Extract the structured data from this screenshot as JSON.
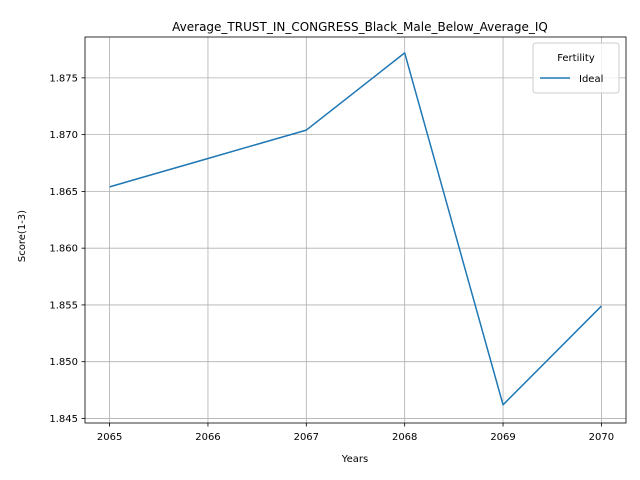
{
  "chart_data": {
    "type": "line",
    "title": "Average_TRUST_IN_CONGRESS_Black_Male_Below_Average_IQ",
    "xlabel": "Years",
    "ylabel": "Score(1-3)",
    "x": [
      2065,
      2066,
      2067,
      2068,
      2069,
      2070
    ],
    "x_ticks": [
      "2065",
      "2066",
      "2067",
      "2068",
      "2069",
      "2070"
    ],
    "y_ticks": [
      "1.845",
      "1.850",
      "1.855",
      "1.860",
      "1.865",
      "1.870",
      "1.875"
    ],
    "y_tick_values": [
      1.845,
      1.85,
      1.855,
      1.86,
      1.865,
      1.87,
      1.875
    ],
    "xlim": [
      2064.75,
      2070.25
    ],
    "ylim": [
      1.8446,
      1.8786
    ],
    "grid": true,
    "legend": {
      "title": "Fertility",
      "position": "top-right"
    },
    "series": [
      {
        "name": "Ideal",
        "color": "#1f77b4",
        "values": [
          1.8654,
          1.8679,
          1.8704,
          1.8772,
          1.8462,
          1.8549
        ]
      }
    ]
  }
}
